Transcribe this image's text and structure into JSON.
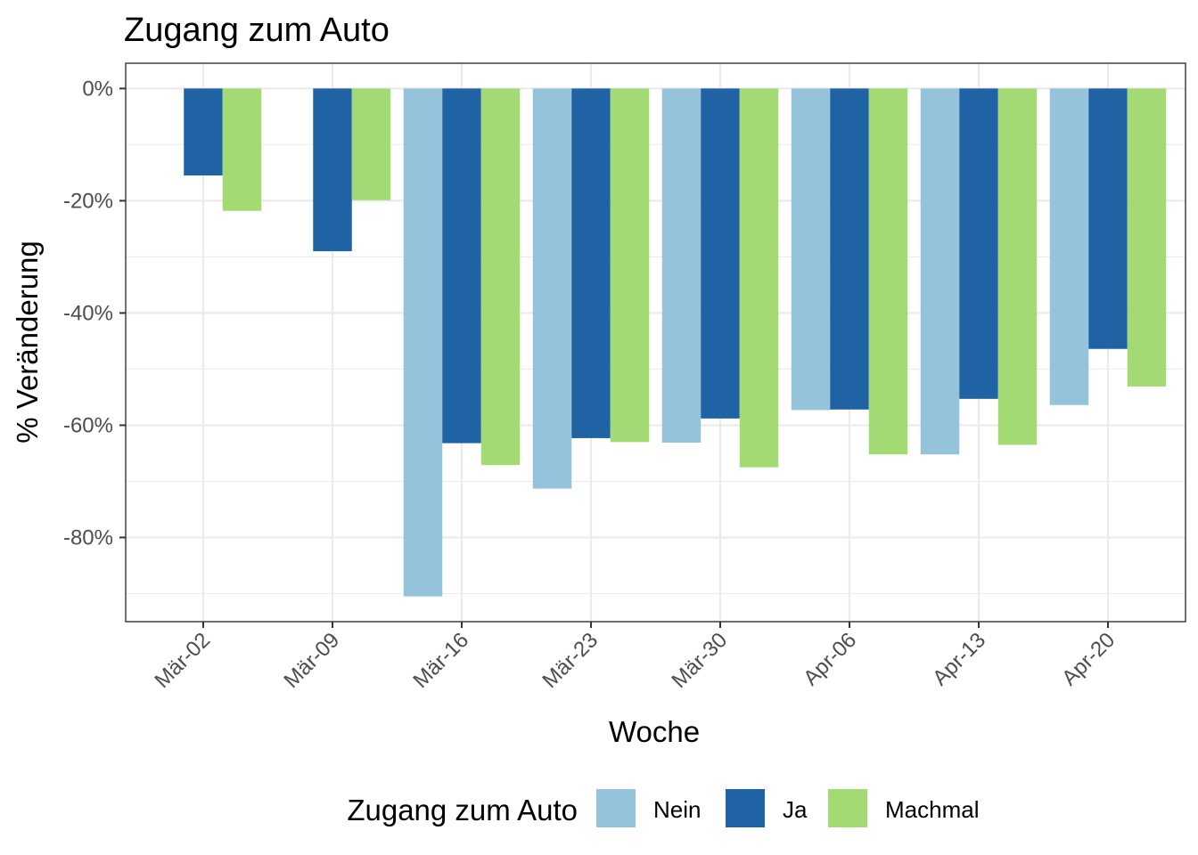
{
  "chart_data": {
    "type": "bar",
    "title": "Zugang zum Auto",
    "xlabel": "Woche",
    "ylabel": "% Veränderung",
    "categories": [
      "Mär-02",
      "Mär-09",
      "Mär-16",
      "Mär-23",
      "Mär-30",
      "Apr-06",
      "Apr-13",
      "Apr-20"
    ],
    "ylim": [
      -95,
      4.5
    ],
    "yticks": [
      0,
      -20,
      -40,
      -60,
      -80
    ],
    "ytick_labels": [
      "0%",
      "-20%",
      "-40%",
      "-60%",
      "-80%"
    ],
    "grid": true,
    "legend": {
      "title": "Zugang zum Auto",
      "position": "bottom"
    },
    "series": [
      {
        "name": "Nein",
        "color": "#96c3dc",
        "values": [
          null,
          null,
          -90.5,
          -71.3,
          -63.1,
          -57.3,
          -65.2,
          -56.4
        ]
      },
      {
        "name": "Ja",
        "color": "#1f63a5",
        "values": [
          -15.5,
          -29.0,
          -63.2,
          -62.3,
          -58.8,
          -57.2,
          -55.3,
          -46.4
        ]
      },
      {
        "name": "Machmal",
        "color": "#a3da73",
        "values": [
          -21.8,
          -19.9,
          -67.1,
          -63.0,
          -67.5,
          -65.2,
          -63.5,
          -53.1
        ]
      }
    ]
  }
}
